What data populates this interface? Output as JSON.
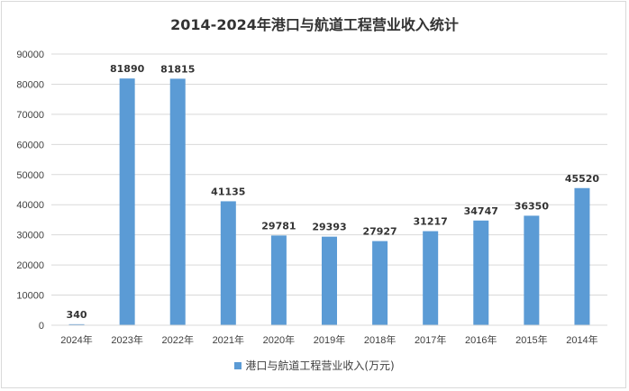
{
  "chart_data": {
    "type": "bar",
    "title": "2014-2024年港口与航道工程营业收入统计",
    "categories": [
      "2024年",
      "2023年",
      "2022年",
      "2021年",
      "2020年",
      "2019年",
      "2018年",
      "2017年",
      "2016年",
      "2015年",
      "2014年"
    ],
    "series": [
      {
        "name": "港口与航道工程营业收入(万元)",
        "values": [
          340,
          81890,
          81815,
          41135,
          29781,
          29393,
          27927,
          31217,
          34747,
          36350,
          45520
        ]
      }
    ],
    "ylim": [
      0,
      90000
    ],
    "yticks": [
      0,
      10000,
      20000,
      30000,
      40000,
      50000,
      60000,
      70000,
      80000,
      90000
    ],
    "grid": true,
    "legend_position": "bottom",
    "bar_color": "#5b9bd5",
    "grid_color": "#d9d9d9"
  }
}
